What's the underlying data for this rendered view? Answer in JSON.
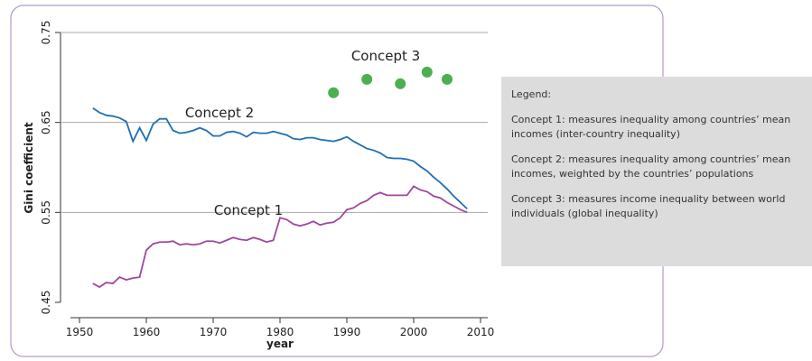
{
  "chart_data": {
    "type": "line",
    "xlabel": "year",
    "ylabel": "Gini coefficient",
    "xlim": [
      1950,
      2010
    ],
    "xticks": [
      1950,
      1960,
      1970,
      1980,
      1990,
      2000,
      2010
    ],
    "ylim": [
      0.45,
      0.75
    ],
    "yticks": [
      0.45,
      0.55,
      0.65,
      0.75
    ],
    "grid": true,
    "x": [
      1952,
      1953,
      1954,
      1955,
      1956,
      1957,
      1958,
      1959,
      1960,
      1961,
      1962,
      1963,
      1964,
      1965,
      1966,
      1967,
      1968,
      1969,
      1970,
      1971,
      1972,
      1973,
      1974,
      1975,
      1976,
      1977,
      1978,
      1979,
      1980,
      1981,
      1982,
      1983,
      1984,
      1985,
      1986,
      1987,
      1988,
      1989,
      1990,
      1991,
      1992,
      1993,
      1994,
      1995,
      1996,
      1997,
      1998,
      1999,
      2000,
      2001,
      2002,
      2003,
      2004,
      2005,
      2006,
      2007,
      2008
    ],
    "series": [
      {
        "name": "Concept 1",
        "color": "#a0479b",
        "values": [
          0.471,
          0.467,
          0.472,
          0.471,
          0.478,
          0.475,
          0.477,
          0.478,
          0.508,
          0.515,
          0.517,
          0.517,
          0.518,
          0.514,
          0.515,
          0.514,
          0.515,
          0.518,
          0.518,
          0.516,
          0.519,
          0.522,
          0.52,
          0.519,
          0.522,
          0.52,
          0.517,
          0.519,
          0.544,
          0.542,
          0.537,
          0.535,
          0.537,
          0.54,
          0.536,
          0.538,
          0.539,
          0.544,
          0.553,
          0.555,
          0.56,
          0.563,
          0.569,
          0.572,
          0.569,
          0.569,
          0.569,
          0.569,
          0.579,
          0.575,
          0.573,
          0.568,
          0.566,
          0.561,
          0.557,
          0.553,
          0.55
        ]
      },
      {
        "name": "Concept 2",
        "color": "#1f6fb5",
        "values": [
          0.666,
          0.661,
          0.658,
          0.657,
          0.655,
          0.651,
          0.629,
          0.644,
          0.63,
          0.648,
          0.654,
          0.654,
          0.641,
          0.638,
          0.639,
          0.641,
          0.644,
          0.641,
          0.635,
          0.635,
          0.639,
          0.64,
          0.638,
          0.634,
          0.639,
          0.638,
          0.638,
          0.64,
          0.638,
          0.636,
          0.632,
          0.631,
          0.633,
          0.633,
          0.631,
          0.63,
          0.629,
          0.631,
          0.634,
          0.629,
          0.625,
          0.621,
          0.619,
          0.616,
          0.611,
          0.61,
          0.61,
          0.609,
          0.607,
          0.601,
          0.596,
          0.589,
          0.583,
          0.576,
          0.568,
          0.561,
          0.554
        ]
      }
    ],
    "points": {
      "name": "Concept 3",
      "color": "#4caf50",
      "x": [
        1988,
        1993,
        1998,
        2002,
        2005
      ],
      "values": [
        0.683,
        0.698,
        0.693,
        0.706,
        0.698
      ]
    },
    "legend": {
      "title": "Legend:",
      "items": [
        [
          "Concept 1: measures inequality among countries’ mean",
          "incomes (inter-country inequality)"
        ],
        [
          "Concept 2: measures inequality among countries’ mean",
          "incomes, weighted by the countries’ populations"
        ],
        [
          "Concept 3: measures income inequality between world",
          "individuals (global inequality)"
        ]
      ]
    }
  }
}
